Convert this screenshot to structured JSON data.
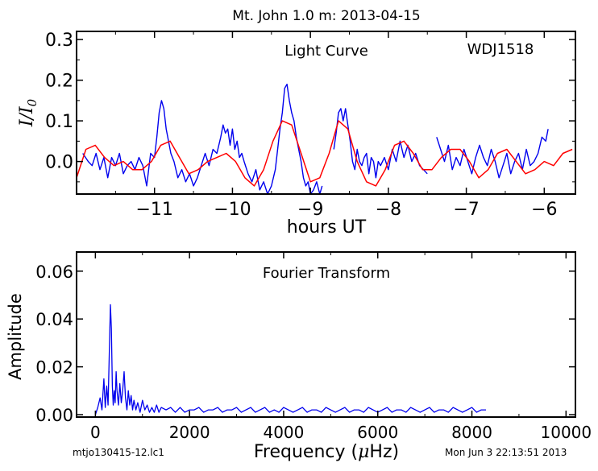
{
  "figure_title": "Mt. John 1.0 m:  2013-04-15",
  "footer": {
    "filename": "mtjo130415-12.lc1",
    "timestamp": "Mon Jun  3 22:13:51 2013"
  },
  "colors": {
    "data": "#0000ee",
    "fit": "#ff0000",
    "axes": "#000000"
  },
  "chart_data": [
    {
      "type": "line",
      "title": "Light Curve",
      "annotation": "WDJ1518",
      "xlabel": "hours UT",
      "ylabel": "I/I0",
      "ylabel_main": "I/I",
      "ylabel_sub": "0",
      "xlim": [
        -12.0,
        -5.6
      ],
      "ylim": [
        -0.08,
        0.32
      ],
      "xticks": [
        -11,
        -10,
        -9,
        -8,
        -7,
        -6
      ],
      "xtick_labels": [
        "−11",
        "−10",
        "−9",
        "−8",
        "−7",
        "−6"
      ],
      "yticks": [
        0.0,
        0.1,
        0.2,
        0.3
      ],
      "ytick_labels": [
        "0.0",
        "0.1",
        "0.2",
        "0.3"
      ],
      "grid": false,
      "series": [
        {
          "role": "data",
          "segments": [
            {
              "x": [
                -11.92,
                -11.85,
                -11.8,
                -11.75,
                -11.7,
                -11.65,
                -11.6,
                -11.55,
                -11.5,
                -11.45,
                -11.4,
                -11.35,
                -11.3,
                -11.25,
                -11.2,
                -11.15,
                -11.1,
                -11.05,
                -11.0,
                -10.97,
                -10.94,
                -10.91,
                -10.88,
                -10.85,
                -10.82,
                -10.79,
                -10.75,
                -10.7,
                -10.65,
                -10.6,
                -10.55,
                -10.5,
                -10.45,
                -10.4,
                -10.35,
                -10.3,
                -10.25,
                -10.2,
                -10.15,
                -10.12,
                -10.09,
                -10.06,
                -10.03,
                -10.0,
                -9.97,
                -9.94,
                -9.91,
                -9.88,
                -9.85,
                -9.8,
                -9.75,
                -9.7,
                -9.65,
                -9.6,
                -9.55,
                -9.5,
                -9.45,
                -9.42,
                -9.39,
                -9.36,
                -9.33,
                -9.3,
                -9.27,
                -9.24,
                -9.21,
                -9.18,
                -9.15,
                -9.12,
                -9.09,
                -9.06,
                -9.03,
                -9.0,
                -8.96,
                -8.92,
                -8.88,
                -8.85
              ],
              "y": [
                0.02,
                0.0,
                -0.01,
                0.02,
                -0.02,
                0.01,
                -0.04,
                0.01,
                -0.01,
                0.02,
                -0.03,
                -0.01,
                0.0,
                -0.02,
                0.01,
                -0.01,
                -0.06,
                0.02,
                0.01,
                0.06,
                0.12,
                0.15,
                0.13,
                0.08,
                0.05,
                0.02,
                0.0,
                -0.04,
                -0.02,
                -0.05,
                -0.03,
                -0.06,
                -0.04,
                -0.01,
                0.02,
                -0.01,
                0.03,
                0.02,
                0.06,
                0.09,
                0.07,
                0.08,
                0.04,
                0.08,
                0.03,
                0.05,
                0.01,
                0.02,
                0.0,
                -0.03,
                -0.05,
                -0.02,
                -0.07,
                -0.05,
                -0.08,
                -0.06,
                -0.02,
                0.03,
                0.08,
                0.12,
                0.18,
                0.19,
                0.15,
                0.12,
                0.1,
                0.06,
                0.03,
                0.0,
                -0.04,
                -0.06,
                -0.05,
                -0.08,
                -0.07,
                -0.05,
                -0.08,
                -0.06
              ]
            },
            {
              "x": [
                -8.7,
                -8.67,
                -8.64,
                -8.61,
                -8.58,
                -8.55,
                -8.52,
                -8.49,
                -8.46,
                -8.43,
                -8.4,
                -8.37,
                -8.34,
                -8.31,
                -8.28,
                -8.25,
                -8.22,
                -8.19,
                -8.16,
                -8.13,
                -8.1,
                -8.05,
                -8.0,
                -7.95,
                -7.9,
                -7.85,
                -7.8,
                -7.75,
                -7.7,
                -7.65,
                -7.6,
                -7.55,
                -7.5
              ],
              "y": [
                0.03,
                0.07,
                0.12,
                0.13,
                0.1,
                0.13,
                0.09,
                0.05,
                0.0,
                -0.02,
                0.03,
                0.0,
                -0.01,
                0.01,
                0.02,
                -0.03,
                0.01,
                0.0,
                -0.04,
                0.0,
                -0.01,
                0.01,
                -0.02,
                0.03,
                0.0,
                0.05,
                0.01,
                0.04,
                0.0,
                0.02,
                -0.01,
                -0.02,
                -0.03
              ]
            },
            {
              "x": [
                -7.38,
                -7.33,
                -7.28,
                -7.23,
                -7.18,
                -7.13,
                -7.08,
                -7.03,
                -6.98,
                -6.93,
                -6.88,
                -6.83,
                -6.78,
                -6.73,
                -6.68,
                -6.63,
                -6.58,
                -6.53,
                -6.48,
                -6.43,
                -6.38,
                -6.33,
                -6.28,
                -6.23,
                -6.18,
                -6.13,
                -6.08,
                -6.03,
                -5.98,
                -5.95
              ],
              "y": [
                0.06,
                0.03,
                0.0,
                0.04,
                -0.02,
                0.01,
                -0.01,
                0.03,
                0.0,
                -0.03,
                0.01,
                0.04,
                0.01,
                -0.01,
                0.03,
                0.0,
                -0.04,
                -0.01,
                0.02,
                -0.03,
                0.0,
                0.02,
                -0.02,
                0.03,
                -0.01,
                0.0,
                0.02,
                0.06,
                0.05,
                0.08
              ]
            }
          ]
        },
        {
          "role": "fit",
          "x": [
            -12.0,
            -11.88,
            -11.76,
            -11.64,
            -11.52,
            -11.4,
            -11.28,
            -11.16,
            -11.04,
            -10.92,
            -10.8,
            -10.68,
            -10.56,
            -10.44,
            -10.32,
            -10.2,
            -10.08,
            -9.96,
            -9.84,
            -9.72,
            -9.6,
            -9.48,
            -9.36,
            -9.24,
            -9.12,
            -9.0,
            -8.88,
            -8.76,
            -8.64,
            -8.52,
            -8.4,
            -8.28,
            -8.16,
            -8.04,
            -7.92,
            -7.8,
            -7.68,
            -7.56,
            -7.44,
            -7.32,
            -7.2,
            -7.08,
            -6.96,
            -6.84,
            -6.72,
            -6.6,
            -6.48,
            -6.36,
            -6.24,
            -6.12,
            -6.0,
            -5.88,
            -5.76,
            -5.64
          ],
          "y": [
            -0.04,
            0.03,
            0.04,
            0.01,
            -0.01,
            0.0,
            -0.02,
            -0.02,
            0.0,
            0.04,
            0.05,
            0.01,
            -0.03,
            -0.02,
            0.0,
            0.01,
            0.02,
            0.0,
            -0.04,
            -0.06,
            -0.02,
            0.05,
            0.1,
            0.09,
            0.02,
            -0.05,
            -0.04,
            0.02,
            0.1,
            0.08,
            0.0,
            -0.05,
            -0.06,
            -0.02,
            0.04,
            0.05,
            0.02,
            -0.02,
            -0.02,
            0.01,
            0.03,
            0.03,
            0.0,
            -0.04,
            -0.02,
            0.02,
            0.03,
            0.0,
            -0.03,
            -0.02,
            0.0,
            -0.01,
            0.02,
            0.03
          ]
        }
      ]
    },
    {
      "type": "line",
      "title": "Fourier Transform",
      "xlabel": "Frequency (μHz)",
      "xlabel_pre": "Frequency (",
      "xlabel_mu": "μ",
      "xlabel_post": "Hz)",
      "ylabel": "Amplitude",
      "xlim": [
        -400,
        10200
      ],
      "ylim": [
        -0.001,
        0.068
      ],
      "xticks": [
        0,
        2000,
        4000,
        6000,
        8000,
        10000
      ],
      "xtick_labels": [
        "0",
        "2000",
        "4000",
        "6000",
        "8000",
        "10000"
      ],
      "yticks": [
        0.0,
        0.02,
        0.04,
        0.06
      ],
      "ytick_labels": [
        "0.00",
        "0.02",
        "0.04",
        "0.06"
      ],
      "grid": false,
      "series": [
        {
          "role": "amplitude",
          "x": [
            0,
            50,
            100,
            140,
            180,
            210,
            240,
            270,
            300,
            320,
            340,
            360,
            380,
            400,
            420,
            440,
            460,
            490,
            520,
            550,
            580,
            610,
            640,
            670,
            700,
            730,
            760,
            790,
            820,
            860,
            900,
            950,
            1000,
            1050,
            1100,
            1150,
            1200,
            1250,
            1300,
            1350,
            1400,
            1500,
            1600,
            1700,
            1800,
            1900,
            2000,
            2100,
            2200,
            2300,
            2400,
            2500,
            2600,
            2700,
            2800,
            2900,
            3000,
            3100,
            3200,
            3300,
            3400,
            3500,
            3600,
            3700,
            3800,
            3900,
            4000,
            4100,
            4200,
            4300,
            4400,
            4500,
            4600,
            4700,
            4800,
            4900,
            5000,
            5100,
            5200,
            5300,
            5400,
            5500,
            5600,
            5700,
            5800,
            5900,
            6000,
            6100,
            6200,
            6300,
            6400,
            6500,
            6600,
            6700,
            6800,
            6900,
            7000,
            7100,
            7200,
            7300,
            7400,
            7500,
            7600,
            7700,
            7800,
            7900,
            8000,
            8100,
            8200,
            8300
          ],
          "y": [
            0.0,
            0.003,
            0.007,
            0.002,
            0.015,
            0.003,
            0.012,
            0.004,
            0.03,
            0.046,
            0.036,
            0.012,
            0.004,
            0.01,
            0.005,
            0.018,
            0.01,
            0.004,
            0.013,
            0.005,
            0.01,
            0.018,
            0.007,
            0.002,
            0.01,
            0.004,
            0.008,
            0.002,
            0.006,
            0.002,
            0.005,
            0.001,
            0.006,
            0.002,
            0.004,
            0.001,
            0.003,
            0.001,
            0.004,
            0.001,
            0.003,
            0.002,
            0.003,
            0.001,
            0.003,
            0.001,
            0.002,
            0.002,
            0.003,
            0.001,
            0.002,
            0.002,
            0.003,
            0.001,
            0.002,
            0.002,
            0.003,
            0.001,
            0.002,
            0.003,
            0.001,
            0.002,
            0.003,
            0.001,
            0.002,
            0.001,
            0.003,
            0.002,
            0.001,
            0.002,
            0.003,
            0.001,
            0.002,
            0.002,
            0.001,
            0.003,
            0.002,
            0.001,
            0.002,
            0.003,
            0.001,
            0.002,
            0.002,
            0.001,
            0.003,
            0.002,
            0.001,
            0.002,
            0.003,
            0.001,
            0.002,
            0.002,
            0.001,
            0.003,
            0.002,
            0.001,
            0.002,
            0.003,
            0.001,
            0.002,
            0.002,
            0.001,
            0.003,
            0.002,
            0.001,
            0.002,
            0.003,
            0.001,
            0.002,
            0.002
          ]
        }
      ]
    }
  ]
}
